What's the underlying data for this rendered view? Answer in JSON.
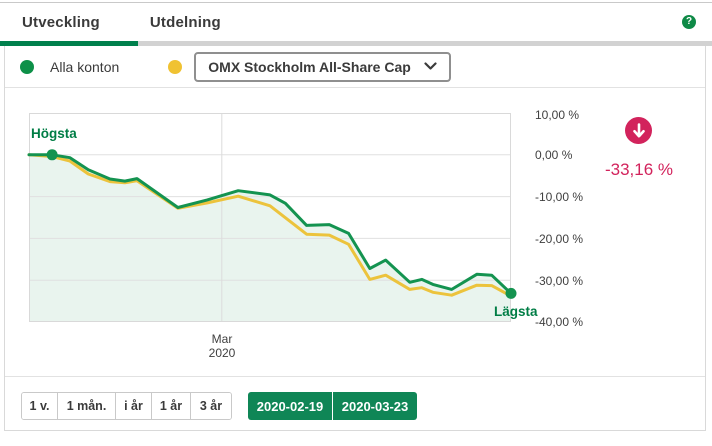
{
  "tabs": [
    {
      "label": "Utveckling",
      "active": true
    },
    {
      "label": "Utdelning",
      "active": false
    }
  ],
  "help": {
    "symbol": "?"
  },
  "legend": {
    "accounts_label": "Alla konton",
    "index_dropdown_value": "OMX Stockholm All-Share Cap"
  },
  "summary": {
    "direction": "down",
    "change_value": "-33,16 %"
  },
  "chart_data": {
    "type": "line",
    "title": "",
    "xlabel": "",
    "ylabel": "",
    "ylim": [
      -40,
      10
    ],
    "grid": true,
    "y_ticks": [
      {
        "value": 10,
        "label": "10,00 %"
      },
      {
        "value": 0,
        "label": "0,00 %"
      },
      {
        "value": -10,
        "label": "-10,00 %"
      },
      {
        "value": -20,
        "label": "-20,00 %"
      },
      {
        "value": -30,
        "label": "-30,00 %"
      },
      {
        "value": -40,
        "label": "-40,00 %"
      }
    ],
    "x_tick": {
      "label_month": "Mar",
      "label_year": "2020",
      "fraction": 0.4
    },
    "x_range": {
      "start_date": "2020-02-19",
      "end_date": "2020-03-23"
    },
    "annotations": {
      "high": {
        "label": "Högsta",
        "point_index": 1,
        "value_pct": 0.0
      },
      "low": {
        "label": "Lägsta",
        "value_pct": -33.16
      }
    },
    "series": [
      {
        "name": "Alla konton",
        "color": "#149350",
        "fill": "#e9f4ee",
        "points": [
          [
            0.0,
            0.0
          ],
          [
            0.048,
            0.0
          ],
          [
            0.085,
            -0.7
          ],
          [
            0.123,
            -3.6
          ],
          [
            0.168,
            -5.8
          ],
          [
            0.199,
            -6.3
          ],
          [
            0.224,
            -5.7
          ],
          [
            0.309,
            -12.6
          ],
          [
            0.37,
            -10.8
          ],
          [
            0.434,
            -8.6
          ],
          [
            0.5,
            -9.6
          ],
          [
            0.532,
            -11.6
          ],
          [
            0.576,
            -16.9
          ],
          [
            0.623,
            -16.7
          ],
          [
            0.663,
            -18.8
          ],
          [
            0.707,
            -27.2
          ],
          [
            0.74,
            -25.2
          ],
          [
            0.79,
            -30.5
          ],
          [
            0.815,
            -29.8
          ],
          [
            0.838,
            -31.0
          ],
          [
            0.877,
            -32.2
          ],
          [
            0.929,
            -28.6
          ],
          [
            0.96,
            -28.8
          ],
          [
            1.0,
            -33.16
          ]
        ]
      },
      {
        "name": "OMX Stockholm All-Share Cap",
        "color": "#ecc33c",
        "points": [
          [
            0.0,
            0.0
          ],
          [
            0.048,
            -0.4
          ],
          [
            0.085,
            -1.5
          ],
          [
            0.123,
            -4.6
          ],
          [
            0.168,
            -6.4
          ],
          [
            0.199,
            -6.7
          ],
          [
            0.224,
            -6.2
          ],
          [
            0.309,
            -12.8
          ],
          [
            0.37,
            -11.5
          ],
          [
            0.434,
            -9.9
          ],
          [
            0.5,
            -12.2
          ],
          [
            0.576,
            -19.0
          ],
          [
            0.623,
            -19.2
          ],
          [
            0.663,
            -21.4
          ],
          [
            0.707,
            -29.8
          ],
          [
            0.74,
            -28.8
          ],
          [
            0.79,
            -32.2
          ],
          [
            0.815,
            -31.8
          ],
          [
            0.838,
            -32.9
          ],
          [
            0.877,
            -33.6
          ],
          [
            0.929,
            -31.2
          ],
          [
            0.96,
            -31.3
          ],
          [
            1.0,
            -33.8
          ]
        ]
      }
    ]
  },
  "footer": {
    "range_buttons": [
      "1 v.",
      "1 mån.",
      "i år",
      "1 år",
      "3 år"
    ],
    "from_date": "2020-02-19",
    "to_date": "2020-03-23"
  },
  "colors": {
    "brand_green": "#00804c",
    "line_green": "#149350",
    "line_yellow": "#ecc33c",
    "badge_red": "#d2235c",
    "button_green": "#0f8656"
  }
}
